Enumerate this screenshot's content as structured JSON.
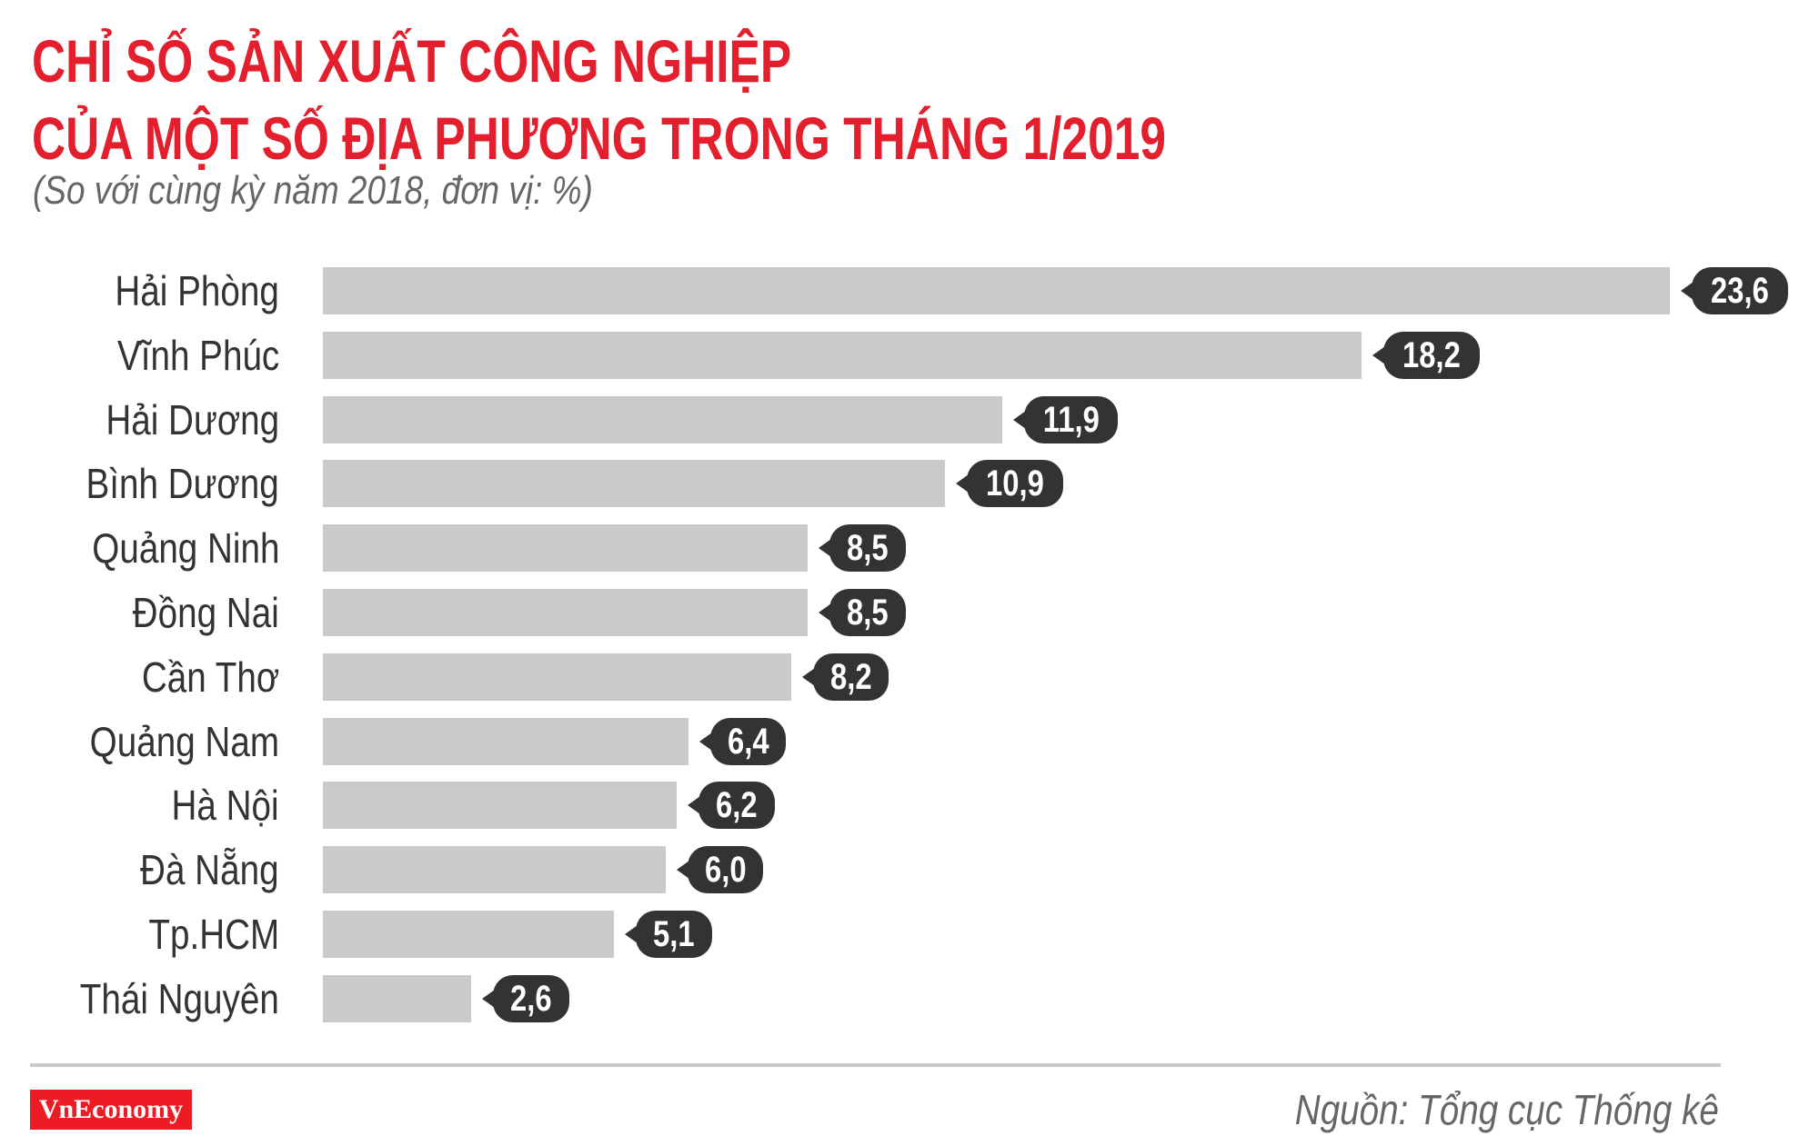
{
  "header": {
    "title_line1": "CHỈ SỐ SẢN XUẤT CÔNG NGHIỆP",
    "title_line2": "CỦA MỘT SỐ ĐỊA PHƯƠNG TRONG THÁNG 1/2019",
    "subtitle": "(So với cùng kỳ năm 2018, đơn vị: %)"
  },
  "footer": {
    "logo": "VnEconomy",
    "source": "Nguồn: Tổng cục Thống kê"
  },
  "colors": {
    "title": "#E31E2D",
    "bar": "#CBCACB",
    "badge": "#333333",
    "logo_bg": "#ED1C24"
  },
  "chart_data": {
    "type": "bar",
    "orientation": "horizontal",
    "title": "CHỈ SỐ SẢN XUẤT CÔNG NGHIỆP CỦA MỘT SỐ ĐỊA PHƯƠNG TRONG THÁNG 1/2019",
    "subtitle": "(So với cùng kỳ năm 2018, đơn vị: %)",
    "xlabel": "",
    "ylabel": "",
    "unit": "%",
    "categories": [
      "Hải Phòng",
      "Vĩnh Phúc",
      "Hải Dương",
      "Bình Dương",
      "Quảng Ninh",
      "Đồng Nai",
      "Cần Thơ",
      "Quảng Nam",
      "Hà Nội",
      "Đà Nẵng",
      "Tp.HCM",
      "Thái Nguyên"
    ],
    "values": [
      23.6,
      18.2,
      11.9,
      10.9,
      8.5,
      8.5,
      8.2,
      6.4,
      6.2,
      6.0,
      5.1,
      2.6
    ],
    "value_labels": [
      "23,6",
      "18,2",
      "11,9",
      "10,9",
      "8,5",
      "8,5",
      "8,2",
      "6,4",
      "6,2",
      "6,0",
      "5,1",
      "2,6"
    ],
    "xlim": [
      0,
      23.6
    ],
    "grid": false,
    "legend": null,
    "source": "Nguồn: Tổng cục Thống kê"
  }
}
